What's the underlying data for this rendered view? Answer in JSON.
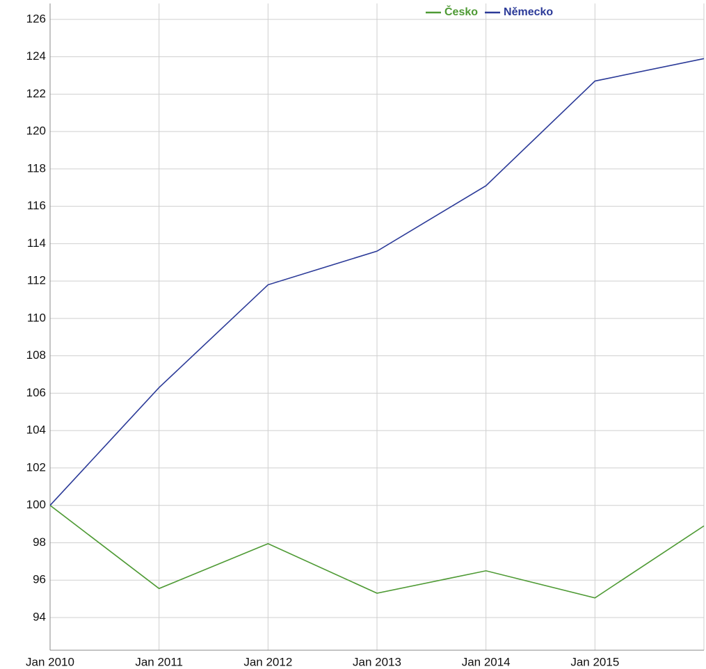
{
  "chart_data": {
    "type": "line",
    "categories": [
      "Jan 2010",
      "Jan 2011",
      "Jan 2012",
      "Jan 2013",
      "Jan 2014",
      "Jan 2015",
      null
    ],
    "series": [
      {
        "name": "Česko",
        "color": "#4e9a34",
        "values": [
          100,
          95.55,
          97.95,
          95.3,
          96.5,
          95.05,
          98.9
        ]
      },
      {
        "name": "Německo",
        "color": "#2b3a98",
        "values": [
          100,
          106.3,
          111.8,
          113.6,
          117.1,
          122.7,
          123.9
        ]
      }
    ],
    "ylim": [
      92.25,
      126.85
    ],
    "yticks": [
      94,
      96,
      98,
      100,
      102,
      104,
      106,
      108,
      110,
      112,
      114,
      116,
      118,
      120,
      122,
      124,
      126
    ],
    "grid": true,
    "legend": "top-right"
  }
}
